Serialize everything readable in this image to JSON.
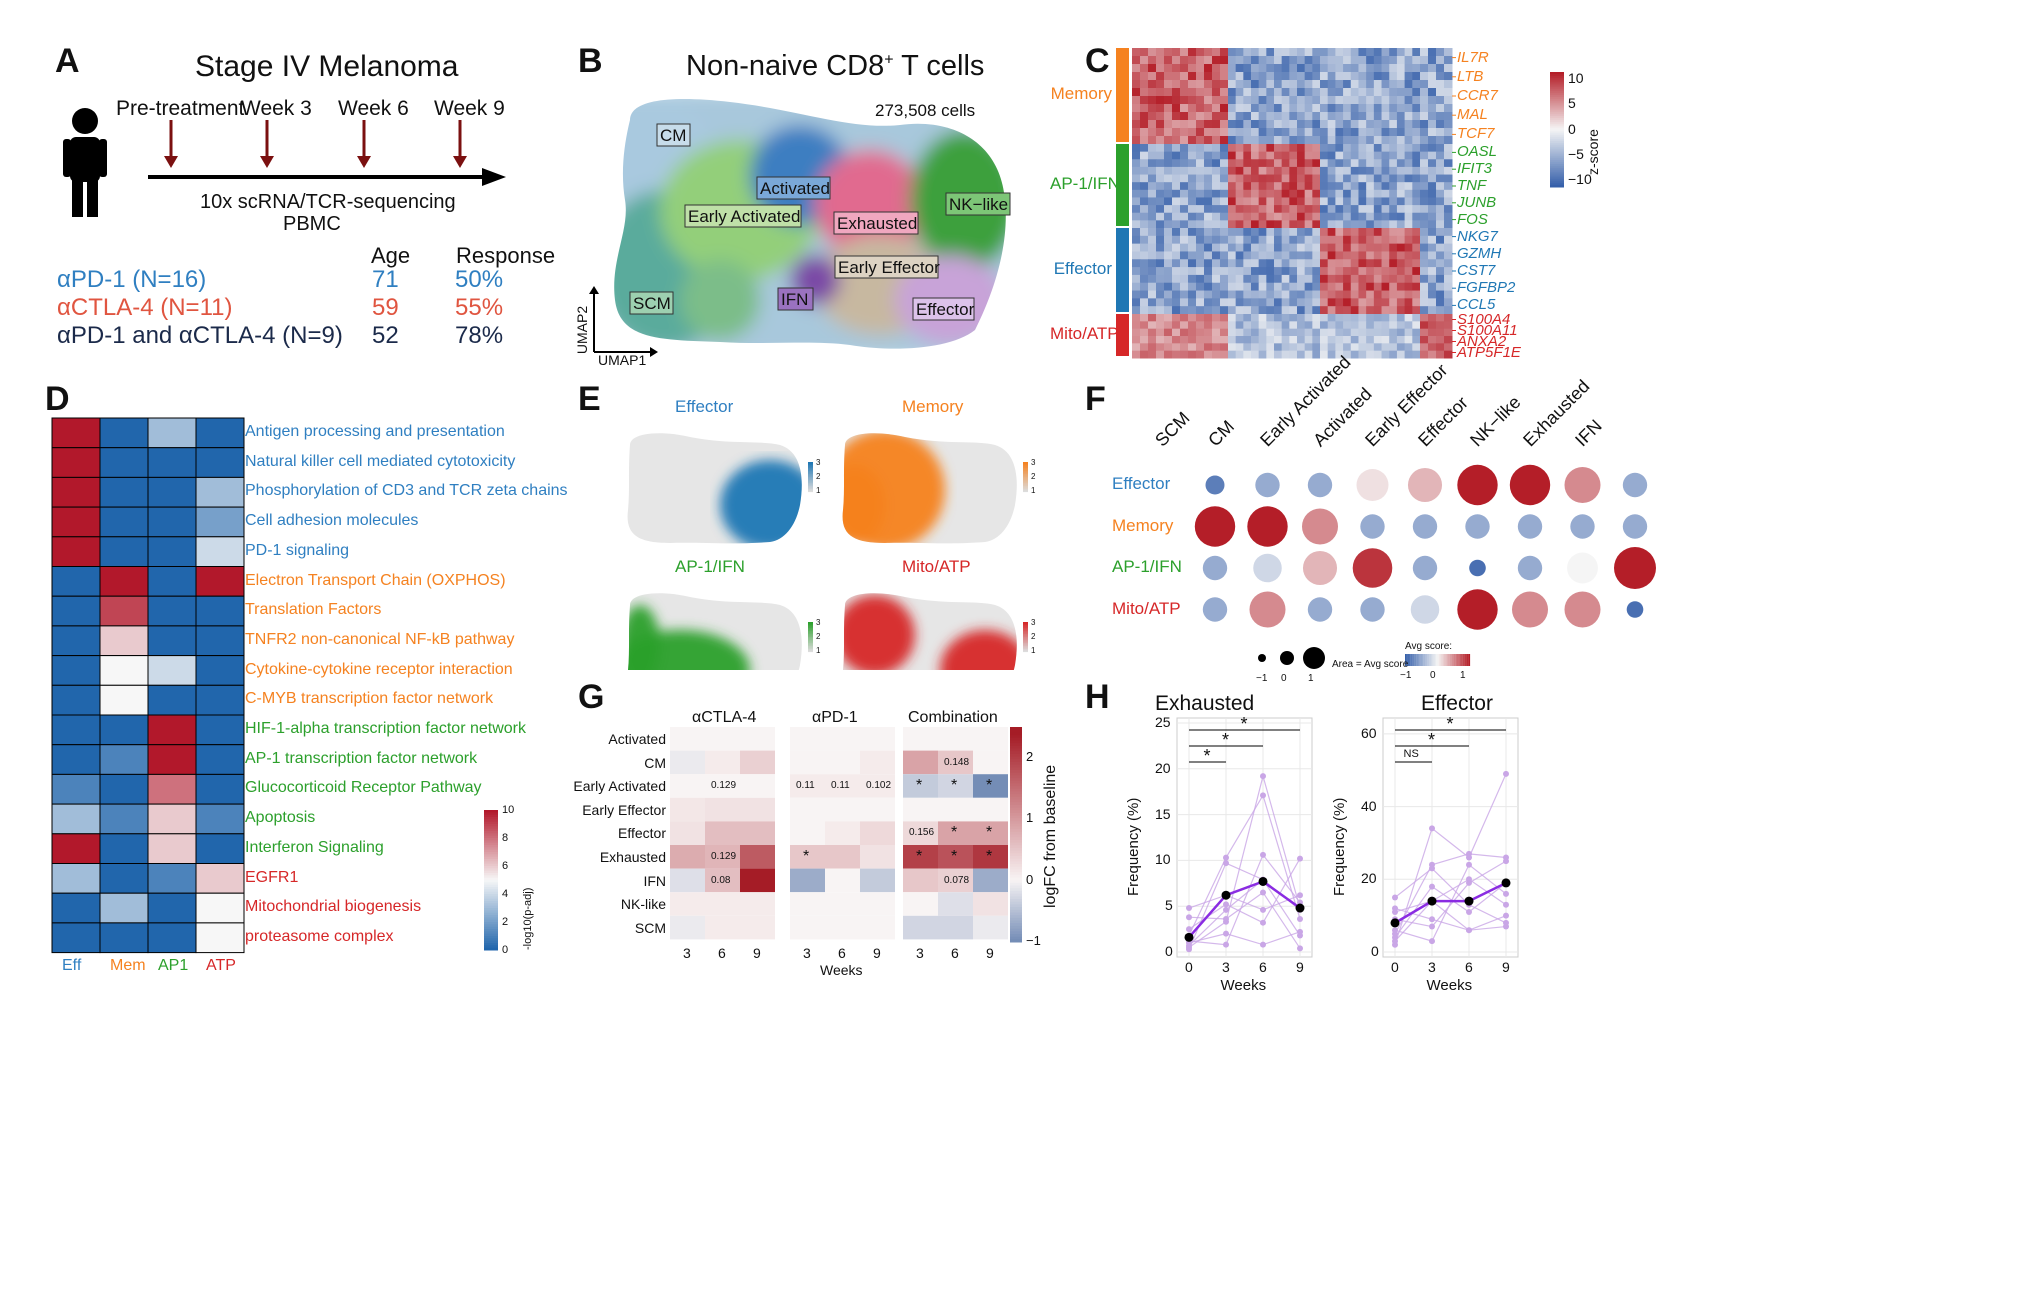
{
  "labels": {
    "A": "A",
    "B": "B",
    "C": "C",
    "D": "D",
    "E": "E",
    "F": "F",
    "G": "G",
    "H": "H"
  },
  "panel_a": {
    "title": "Stage IV Melanoma",
    "timepoints": [
      "Pre-treatment",
      "Week 3",
      "Week 6",
      "Week 9"
    ],
    "seq": "10x scRNA/TCR-sequencing",
    "pbmc": "PBMC",
    "col_age": "Age",
    "col_resp": "Response",
    "rows": [
      {
        "name": "αPD-1 (N=16)",
        "age": "71",
        "resp": "50%",
        "color": "#2f7fc1"
      },
      {
        "name": "αCTLA-4 (N=11)",
        "age": "59",
        "resp": "55%",
        "color": "#e05540"
      },
      {
        "name": "αPD-1 and αCTLA-4 (N=9)",
        "age": "52",
        "resp": "78%",
        "color": "#1b2a4a"
      }
    ]
  },
  "panel_b": {
    "title_pre": "Non-naive CD8",
    "title_sup": "+",
    "title_post": " T cells",
    "cells": "273,508 cells",
    "axis_x": "UMAP1",
    "axis_y": "UMAP2",
    "clusters": [
      "CM",
      "Activated",
      "Early Activated",
      "Exhausted",
      "NK−like",
      "Early Effector",
      "IFN",
      "SCM",
      "Effector"
    ]
  },
  "panel_c": {
    "groups": [
      {
        "name": "Memory",
        "color": "#f58220",
        "genes": [
          "IL7R",
          "LTB",
          "CCR7",
          "MAL",
          "TCF7"
        ]
      },
      {
        "name": "AP-1/IFN",
        "color": "#2ca02c",
        "genes": [
          "OASL",
          "IFIT3",
          "TNF",
          "JUNB",
          "FOS"
        ]
      },
      {
        "name": "Effector",
        "color": "#1f77b4",
        "genes": [
          "NKG7",
          "GZMH",
          "CST7",
          "FGFBP2",
          "CCL5"
        ]
      },
      {
        "name": "Mito/ATP",
        "color": "#d62728",
        "genes": [
          "S100A4",
          "S100A11",
          "ANXA2",
          "ATP5F1E"
        ]
      }
    ],
    "scale_ticks": [
      "10",
      "5",
      "0",
      "−5",
      "−10"
    ],
    "scale_label": "z-score"
  },
  "panel_d": {
    "pathways": [
      {
        "name": "Antigen processing and presentation",
        "color": "#2f7fc1"
      },
      {
        "name": "Natural killer cell mediated cytotoxicity",
        "color": "#2f7fc1"
      },
      {
        "name": "Phosphorylation of CD3 and TCR zeta chains",
        "color": "#2f7fc1"
      },
      {
        "name": "Cell adhesion molecules",
        "color": "#2f7fc1"
      },
      {
        "name": "PD-1 signaling",
        "color": "#2f7fc1"
      },
      {
        "name": "Electron Transport Chain (OXPHOS)",
        "color": "#f58220"
      },
      {
        "name": "Translation Factors",
        "color": "#f58220"
      },
      {
        "name": "TNFR2 non-canonical NF-kB pathway",
        "color": "#f58220"
      },
      {
        "name": "Cytokine-cytokine receptor interaction",
        "color": "#f58220"
      },
      {
        "name": "C-MYB transcription factor network",
        "color": "#f58220"
      },
      {
        "name": "HIF-1-alpha transcription factor network",
        "color": "#2ca02c"
      },
      {
        "name": "AP-1 transcription factor network",
        "color": "#2ca02c"
      },
      {
        "name": "Glucocorticoid Receptor Pathway",
        "color": "#2ca02c"
      },
      {
        "name": "Apoptosis",
        "color": "#2ca02c"
      },
      {
        "name": "Interferon Signaling",
        "color": "#2ca02c"
      },
      {
        "name": "EGFR1",
        "color": "#d62728"
      },
      {
        "name": "Mitochondrial biogenesis",
        "color": "#d62728"
      },
      {
        "name": "proteasome complex",
        "color": "#d62728"
      }
    ],
    "columns": [
      {
        "name": "Eff",
        "color": "#2f7fc1"
      },
      {
        "name": "Mem",
        "color": "#f58220"
      },
      {
        "name": "AP1",
        "color": "#2ca02c"
      },
      {
        "name": "ATP",
        "color": "#d62728"
      }
    ],
    "values": [
      [
        10,
        0,
        3,
        0
      ],
      [
        10,
        0,
        0,
        0
      ],
      [
        10,
        0,
        0,
        3
      ],
      [
        10,
        0,
        0,
        2
      ],
      [
        10,
        0,
        0,
        4
      ],
      [
        0,
        10,
        0,
        10
      ],
      [
        0,
        9,
        0,
        0
      ],
      [
        0,
        6,
        0,
        0
      ],
      [
        0,
        5,
        4,
        0
      ],
      [
        0,
        5,
        0,
        0
      ],
      [
        0,
        0,
        10,
        0
      ],
      [
        0,
        1,
        10,
        0
      ],
      [
        1,
        0,
        8,
        0
      ],
      [
        3,
        1,
        6,
        1
      ],
      [
        10,
        0,
        6,
        0
      ],
      [
        3,
        0,
        1,
        6
      ],
      [
        0,
        3,
        0,
        5
      ],
      [
        0,
        0,
        0,
        5
      ]
    ],
    "scale_ticks": [
      "10",
      "8",
      "6",
      "4",
      "2",
      "0"
    ],
    "scale_label": "-log10(p-adj)"
  },
  "panel_e": {
    "titles": [
      {
        "name": "Effector",
        "color": "#2f7fc1"
      },
      {
        "name": "Memory",
        "color": "#f58220"
      },
      {
        "name": "AP-1/IFN",
        "color": "#2ca02c"
      },
      {
        "name": "Mito/ATP",
        "color": "#d62728"
      }
    ],
    "scale_ticks": [
      "3",
      "2",
      "1"
    ]
  },
  "panel_f": {
    "columns": [
      "SCM",
      "CM",
      "Early Activated",
      "Activated",
      "Early Effector",
      "Effector",
      "NK−like",
      "Exhausted",
      "IFN"
    ],
    "rows": [
      {
        "name": "Effector",
        "color": "#2f7fc1"
      },
      {
        "name": "Memory",
        "color": "#f58220"
      },
      {
        "name": "AP-1/IFN",
        "color": "#2ca02c"
      },
      {
        "name": "Mito/ATP",
        "color": "#d62728"
      }
    ],
    "values": [
      [
        -0.8,
        -0.5,
        -0.5,
        0.1,
        0.3,
        1.0,
        1.0,
        0.5,
        -0.5
      ],
      [
        1.0,
        1.0,
        0.5,
        -0.5,
        -0.5,
        -0.5,
        -0.5,
        -0.5,
        -0.5
      ],
      [
        -0.5,
        -0.2,
        0.3,
        0.9,
        -0.5,
        -0.9,
        -0.5,
        0.0,
        1.2
      ],
      [
        -0.5,
        0.5,
        -0.5,
        -0.5,
        -0.2,
        1.0,
        0.5,
        0.5,
        -0.9
      ]
    ],
    "size_legend": [
      "−1",
      "0",
      "1"
    ],
    "size_label": "Area = Avg score",
    "color_label": "Avg score:",
    "color_ticks": [
      "−1",
      "0",
      "1"
    ]
  },
  "panel_g": {
    "groups": [
      "αCTLA-4",
      "αPD-1",
      "Combination"
    ],
    "rows": [
      "Activated",
      "CM",
      "Early Activated",
      "Early Effector",
      "Effector",
      "Exhausted",
      "IFN",
      "NK-like",
      "SCM"
    ],
    "weeks": [
      "3",
      "6",
      "9"
    ],
    "xlabel": "Weeks",
    "scale_label": "logFC from baseline",
    "scale_ticks": [
      "2",
      "1",
      "0",
      "−1"
    ],
    "values": [
      [
        [
          0,
          0,
          0
        ],
        [
          -0.1,
          0.1,
          0.4
        ],
        [
          0,
          0,
          0
        ],
        [
          0.15,
          0.2,
          0.2
        ],
        [
          0.2,
          0.6,
          0.6
        ],
        [
          0.8,
          0.7,
          1.7
        ],
        [
          -0.2,
          0.6,
          2.4
        ],
        [
          0.1,
          0.1,
          0.1
        ],
        [
          -0.1,
          0.1,
          0.1
        ]
      ],
      [
        [
          0,
          0,
          0
        ],
        [
          0,
          0,
          0.1
        ],
        [
          0.1,
          0.1,
          0.1
        ],
        [
          0,
          0,
          0
        ],
        [
          0,
          0.1,
          0.3
        ],
        [
          0.5,
          0.5,
          0.2
        ],
        [
          -0.7,
          0,
          -0.4
        ],
        [
          0,
          0,
          0
        ],
        [
          0,
          0,
          0
        ]
      ],
      [
        [
          0,
          0,
          0
        ],
        [
          0.9,
          0.5,
          0
        ],
        [
          -0.4,
          -0.3,
          -1.0
        ],
        [
          0,
          0,
          0
        ],
        [
          0.3,
          0.9,
          0.9
        ],
        [
          2.0,
          1.8,
          2.1
        ],
        [
          0.5,
          0.4,
          -0.7
        ],
        [
          0,
          -0.2,
          0.2
        ],
        [
          -0.3,
          -0.3,
          -0.1
        ]
      ]
    ],
    "annotations": [
      [
        [
          "",
          "",
          ""
        ],
        [
          "",
          "",
          ""
        ],
        [
          "",
          "0.129",
          ""
        ],
        [
          "",
          "",
          ""
        ],
        [
          "",
          "",
          ""
        ],
        [
          "",
          "0.129",
          ""
        ],
        [
          "",
          "0.08",
          ""
        ],
        [
          "",
          "",
          ""
        ],
        [
          "",
          "",
          ""
        ]
      ],
      [
        [
          "",
          "",
          ""
        ],
        [
          "",
          "",
          ""
        ],
        [
          "0.11",
          "0.11",
          "0.102"
        ],
        [
          "",
          "",
          ""
        ],
        [
          "",
          "",
          ""
        ],
        [
          "*",
          "",
          ""
        ],
        [
          "",
          "",
          ""
        ],
        [
          "",
          "",
          ""
        ],
        [
          "",
          "",
          ""
        ]
      ],
      [
        [
          "",
          "",
          ""
        ],
        [
          "",
          "0.148",
          ""
        ],
        [
          "*",
          "*",
          "*"
        ],
        [
          "",
          "",
          ""
        ],
        [
          "0.156",
          "*",
          "*"
        ],
        [
          "*",
          "*",
          "*"
        ],
        [
          "",
          "0.078",
          ""
        ],
        [
          "",
          "",
          ""
        ],
        [
          "",
          "",
          ""
        ]
      ]
    ]
  },
  "panel_h": {
    "plots": [
      {
        "title": "Exhausted",
        "ylabel": "Frequency (%)",
        "xlabel": "Weeks",
        "x": [
          0,
          3,
          6,
          9
        ],
        "ylim": [
          0,
          25
        ],
        "yticks": [
          "0",
          "5",
          "10",
          "15",
          "20",
          "25"
        ],
        "median": [
          1.6,
          6.2,
          7.7,
          4.8
        ],
        "patients": [
          [
            0.5,
            3.3,
            19.2,
            4.8
          ],
          [
            1.8,
            10.3,
            17.1,
            3.6
          ],
          [
            0.3,
            9.7,
            7.9,
            4.6
          ],
          [
            4.8,
            6.2,
            4.6,
            6.2
          ],
          [
            2.5,
            5.2,
            3.2,
            10.2
          ],
          [
            1.0,
            2.0,
            0.8,
            2.2
          ],
          [
            0.7,
            4.6,
            7.9,
            1.8
          ],
          [
            3.8,
            3.6,
            6.5,
            0.4
          ],
          [
            1.2,
            0.8,
            10.6,
            5.4
          ]
        ],
        "sig": [
          {
            "from": 0,
            "to": 3,
            "label": "*"
          },
          {
            "from": 0,
            "to": 6,
            "label": "*"
          },
          {
            "from": 0,
            "to": 9,
            "label": "*"
          }
        ]
      },
      {
        "title": "Effector",
        "ylabel": "Frequency (%)",
        "xlabel": "Weeks",
        "x": [
          0,
          3,
          6,
          9
        ],
        "ylim": [
          0,
          63
        ],
        "yticks": [
          "0",
          "20",
          "40",
          "60"
        ],
        "median": [
          8,
          14,
          14,
          19
        ],
        "patients": [
          [
            2,
            34,
            26,
            49
          ],
          [
            5,
            24,
            27,
            26
          ],
          [
            11,
            14,
            20,
            13
          ],
          [
            15,
            23,
            13,
            8
          ],
          [
            9,
            7,
            19,
            25
          ],
          [
            3,
            14,
            6,
            10
          ],
          [
            12,
            9,
            6,
            7
          ],
          [
            6,
            3,
            24,
            16
          ],
          [
            4,
            18,
            11,
            19
          ]
        ],
        "sig": [
          {
            "from": 0,
            "to": 3,
            "label": "NS"
          },
          {
            "from": 0,
            "to": 6,
            "label": "*"
          },
          {
            "from": 0,
            "to": 9,
            "label": "*"
          }
        ]
      }
    ],
    "xticks": [
      "0",
      "3",
      "6",
      "9"
    ]
  },
  "chart_data": [
    {
      "type": "heatmap",
      "title": "",
      "rows": [
        "Antigen processing and presentation",
        "Natural killer cell mediated cytotoxicity",
        "Phosphorylation of CD3 and TCR zeta chains",
        "Cell adhesion molecules",
        "PD-1 signaling",
        "Electron Transport Chain (OXPHOS)",
        "Translation Factors",
        "TNFR2 non-canonical NF-kB pathway",
        "Cytokine-cytokine receptor interaction",
        "C-MYB transcription factor network",
        "HIF-1-alpha transcription factor network",
        "AP-1 transcription factor network",
        "Glucocorticoid Receptor Pathway",
        "Apoptosis",
        "Interferon Signaling",
        "EGFR1",
        "Mitochondrial biogenesis",
        "proteasome complex"
      ],
      "columns": [
        "Eff",
        "Mem",
        "AP1",
        "ATP"
      ],
      "colorbar": "-log10(p-adj)",
      "range": [
        0,
        10
      ]
    },
    {
      "type": "scatter",
      "title": "",
      "columns": [
        "SCM",
        "CM",
        "Early Activated",
        "Activated",
        "Early Effector",
        "Effector",
        "NK−like",
        "Exhausted",
        "IFN"
      ],
      "rows": [
        "Effector",
        "Memory",
        "AP-1/IFN",
        "Mito/ATP"
      ],
      "colorbar": "Avg score:"
    },
    {
      "type": "heatmap",
      "title": "",
      "columns": [
        "αCTLA-4",
        "αPD-1",
        "Combination"
      ],
      "rows": [
        "Activated",
        "CM",
        "Early Activated",
        "Early Effector",
        "Effector",
        "Exhausted",
        "IFN",
        "NK-like",
        "SCM"
      ],
      "xlabel": "Weeks",
      "colorbar": "logFC from baseline",
      "range": [
        -1,
        2.5
      ]
    },
    {
      "type": "line",
      "title": "Exhausted",
      "x": [
        0,
        3,
        6,
        9
      ],
      "series": [],
      "xlabel": "Weeks",
      "ylabel": "Frequency (%)",
      "ylim": [
        0,
        25
      ]
    },
    {
      "type": "line",
      "title": "Effector",
      "x": [
        0,
        3,
        6,
        9
      ],
      "series": [],
      "xlabel": "Weeks",
      "ylabel": "Frequency (%)",
      "ylim": [
        0,
        63
      ]
    }
  ]
}
